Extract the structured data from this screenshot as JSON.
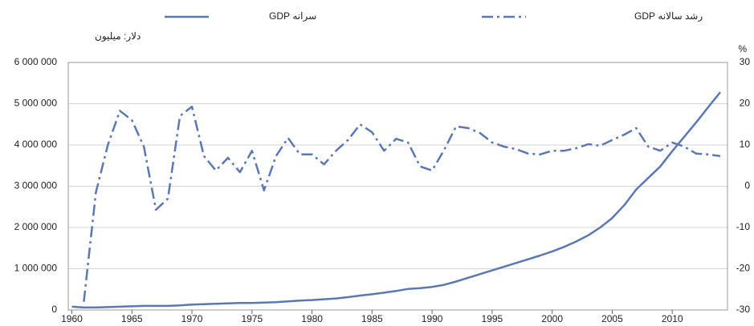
{
  "chart_data": {
    "type": "line",
    "y_label": "دلار: میلیون",
    "y2_label": "%",
    "x": [
      1960,
      1961,
      1962,
      1963,
      1964,
      1965,
      1966,
      1967,
      1968,
      1969,
      1970,
      1971,
      1972,
      1973,
      1974,
      1975,
      1976,
      1977,
      1978,
      1979,
      1980,
      1981,
      1982,
      1983,
      1984,
      1985,
      1986,
      1987,
      1988,
      1989,
      1990,
      1991,
      1992,
      1993,
      1994,
      1995,
      1996,
      1997,
      1998,
      1999,
      2000,
      2001,
      2002,
      2003,
      2004,
      2005,
      2006,
      2007,
      2008,
      2009,
      2010,
      2011,
      2012,
      2013,
      2014
    ],
    "series": [
      {
        "name": "سرانه GDP",
        "color": "#5b78b3",
        "axis": "y",
        "style": "solid",
        "values": [
          80000,
          60000,
          60000,
          70000,
          80000,
          90000,
          100000,
          100000,
          100000,
          110000,
          130000,
          140000,
          150000,
          160000,
          170000,
          170000,
          180000,
          190000,
          210000,
          230000,
          240000,
          260000,
          280000,
          310000,
          350000,
          380000,
          420000,
          460000,
          510000,
          530000,
          560000,
          610000,
          690000,
          780000,
          870000,
          960000,
          1050000,
          1140000,
          1230000,
          1320000,
          1420000,
          1530000,
          1660000,
          1810000,
          2000000,
          2230000,
          2540000,
          2920000,
          3200000,
          3480000,
          3850000,
          4200000,
          4550000,
          4920000,
          5280000
        ]
      },
      {
        "name": "رشد سالانه GDP",
        "color": "#5b78b3",
        "axis": "y2",
        "style": "dashdot",
        "values": [
          null,
          -28,
          -1.5,
          10,
          18.3,
          16,
          9.6,
          -5.7,
          -3,
          17,
          19.3,
          7.3,
          3.8,
          6.9,
          3.4,
          8.6,
          -1,
          7.3,
          11.7,
          7.7,
          7.7,
          5.3,
          8.6,
          11.2,
          15,
          13.1,
          8.6,
          11.5,
          10.6,
          4.8,
          3.8,
          8.8,
          14.5,
          14.1,
          12.9,
          10.6,
          9.6,
          9,
          7.9,
          7.7,
          8.6,
          8.6,
          9.2,
          10.2,
          9.8,
          11.2,
          12.5,
          14.1,
          9.6,
          8.6,
          10.6,
          9.6,
          7.9,
          7.7,
          7.3
        ]
      }
    ],
    "xlim": [
      1959.7,
      2014.6
    ],
    "xticks": [
      1960,
      1965,
      1970,
      1975,
      1980,
      1985,
      1990,
      1995,
      2000,
      2005,
      2010
    ],
    "ylim": [
      0,
      6000000
    ],
    "yticks": [
      {
        "value": 0,
        "label": "0"
      },
      {
        "value": 1000000,
        "label": "1 000 000"
      },
      {
        "value": 2000000,
        "label": "2 000 000"
      },
      {
        "value": 3000000,
        "label": "3 000 000"
      },
      {
        "value": 4000000,
        "label": "4 000 000"
      },
      {
        "value": 5000000,
        "label": "5 000 000"
      },
      {
        "value": 6000000,
        "label": "6 000 000"
      }
    ],
    "y2lim": [
      -30,
      30
    ],
    "y2ticks": [
      -30,
      -20,
      -10,
      0,
      10,
      20,
      30
    ],
    "grid": true
  }
}
